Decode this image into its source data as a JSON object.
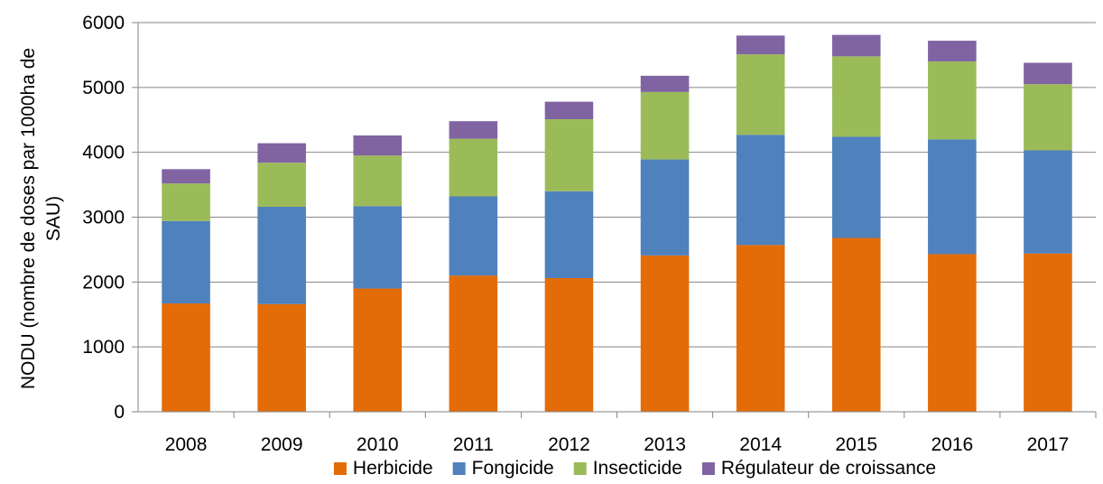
{
  "chart_data": {
    "type": "bar",
    "stacked": true,
    "title": "",
    "xlabel": "",
    "ylabel": "NODU (nombre de doses par 1000ha de SAU)",
    "ylabel_lines": [
      "NODU (nombre de doses par 1000ha de",
      "SAU)"
    ],
    "ylim": [
      0,
      6000
    ],
    "yticks": [
      0,
      1000,
      2000,
      3000,
      4000,
      5000,
      6000
    ],
    "grid": true,
    "legend_position": "bottom",
    "categories": [
      "2008",
      "2009",
      "2010",
      "2011",
      "2012",
      "2013",
      "2014",
      "2015",
      "2016",
      "2017"
    ],
    "series": [
      {
        "name": "Herbicide",
        "color": "#E36C09",
        "values": [
          1670,
          1660,
          1900,
          2100,
          2060,
          2410,
          2570,
          2680,
          2430,
          2440
        ]
      },
      {
        "name": "Fongicide",
        "color": "#4F81BD",
        "values": [
          1270,
          1500,
          1270,
          1220,
          1340,
          1480,
          1700,
          1560,
          1770,
          1590
        ]
      },
      {
        "name": "Insecticide",
        "color": "#9BBB59",
        "values": [
          580,
          680,
          780,
          890,
          1110,
          1040,
          1240,
          1240,
          1200,
          1020
        ]
      },
      {
        "name": "Régulateur de croissance",
        "color": "#8064A2",
        "values": [
          220,
          300,
          310,
          270,
          270,
          250,
          290,
          330,
          320,
          330
        ]
      }
    ]
  }
}
